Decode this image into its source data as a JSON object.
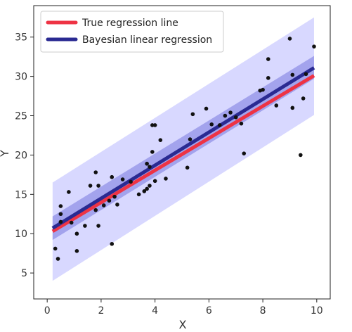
{
  "chart_data": {
    "type": "scatter",
    "xlabel": "X",
    "ylabel": "Y",
    "xlim": [
      -0.5,
      10.5
    ],
    "ylim": [
      1.7,
      39.0
    ],
    "xticks": [
      0,
      2,
      4,
      6,
      8,
      10
    ],
    "yticks": [
      5,
      10,
      15,
      20,
      25,
      30,
      35
    ],
    "grid": false,
    "legend_position": "top-left",
    "legend": {
      "true_line": "True regression line",
      "bayes_line": "Bayesian linear regression"
    },
    "colors": {
      "true_line": "#ee3344",
      "bayes_line": "#2a2a92",
      "outer_band": "#d8d8ff",
      "inner_band": "#9a9aea",
      "points": "#111111"
    },
    "true_line": {
      "x": [
        0.2,
        9.9
      ],
      "y": [
        10.3,
        30.1
      ]
    },
    "bayes_mean": {
      "x": [
        0.2,
        9.9
      ],
      "y": [
        10.7,
        31.1
      ]
    },
    "inner_band": {
      "x": [
        0.2,
        9.9
      ],
      "lower": [
        9.2,
        29.7
      ],
      "upper": [
        12.2,
        32.6
      ]
    },
    "outer_band": {
      "x": [
        0.2,
        9.9
      ],
      "lower": [
        4.0,
        25.1
      ],
      "upper": [
        16.5,
        37.5
      ]
    },
    "points": [
      {
        "x": 0.3,
        "y": 8.1
      },
      {
        "x": 0.4,
        "y": 6.8
      },
      {
        "x": 0.5,
        "y": 11.5
      },
      {
        "x": 0.5,
        "y": 12.5
      },
      {
        "x": 0.5,
        "y": 13.5
      },
      {
        "x": 0.8,
        "y": 15.3
      },
      {
        "x": 0.9,
        "y": 11.4
      },
      {
        "x": 1.1,
        "y": 7.8
      },
      {
        "x": 1.1,
        "y": 10.0
      },
      {
        "x": 1.4,
        "y": 11.0
      },
      {
        "x": 1.6,
        "y": 16.1
      },
      {
        "x": 1.8,
        "y": 13.0
      },
      {
        "x": 1.8,
        "y": 17.8
      },
      {
        "x": 1.9,
        "y": 16.1
      },
      {
        "x": 1.9,
        "y": 11.0
      },
      {
        "x": 2.1,
        "y": 13.6
      },
      {
        "x": 2.3,
        "y": 14.2
      },
      {
        "x": 2.4,
        "y": 17.2
      },
      {
        "x": 2.4,
        "y": 8.7
      },
      {
        "x": 2.5,
        "y": 14.7
      },
      {
        "x": 2.6,
        "y": 13.7
      },
      {
        "x": 2.8,
        "y": 16.9
      },
      {
        "x": 3.1,
        "y": 16.6
      },
      {
        "x": 3.4,
        "y": 15.0
      },
      {
        "x": 3.6,
        "y": 15.4
      },
      {
        "x": 3.7,
        "y": 18.9
      },
      {
        "x": 3.7,
        "y": 15.7
      },
      {
        "x": 3.8,
        "y": 18.5
      },
      {
        "x": 3.8,
        "y": 16.1
      },
      {
        "x": 3.9,
        "y": 20.4
      },
      {
        "x": 3.9,
        "y": 23.8
      },
      {
        "x": 4.0,
        "y": 23.8
      },
      {
        "x": 4.0,
        "y": 16.7
      },
      {
        "x": 4.2,
        "y": 21.9
      },
      {
        "x": 4.4,
        "y": 17.0
      },
      {
        "x": 5.2,
        "y": 18.4
      },
      {
        "x": 5.3,
        "y": 22.0
      },
      {
        "x": 5.4,
        "y": 25.2
      },
      {
        "x": 5.9,
        "y": 25.9
      },
      {
        "x": 6.1,
        "y": 23.9
      },
      {
        "x": 6.4,
        "y": 23.8
      },
      {
        "x": 6.6,
        "y": 25.0
      },
      {
        "x": 6.8,
        "y": 25.4
      },
      {
        "x": 7.0,
        "y": 24.8
      },
      {
        "x": 7.2,
        "y": 24.0
      },
      {
        "x": 7.3,
        "y": 20.2
      },
      {
        "x": 7.9,
        "y": 28.2
      },
      {
        "x": 8.0,
        "y": 28.3
      },
      {
        "x": 8.2,
        "y": 32.2
      },
      {
        "x": 8.2,
        "y": 29.8
      },
      {
        "x": 8.5,
        "y": 26.3
      },
      {
        "x": 9.0,
        "y": 34.8
      },
      {
        "x": 9.1,
        "y": 30.2
      },
      {
        "x": 9.1,
        "y": 26.0
      },
      {
        "x": 9.4,
        "y": 20.0
      },
      {
        "x": 9.5,
        "y": 27.2
      },
      {
        "x": 9.6,
        "y": 30.3
      },
      {
        "x": 9.9,
        "y": 33.8
      }
    ]
  }
}
